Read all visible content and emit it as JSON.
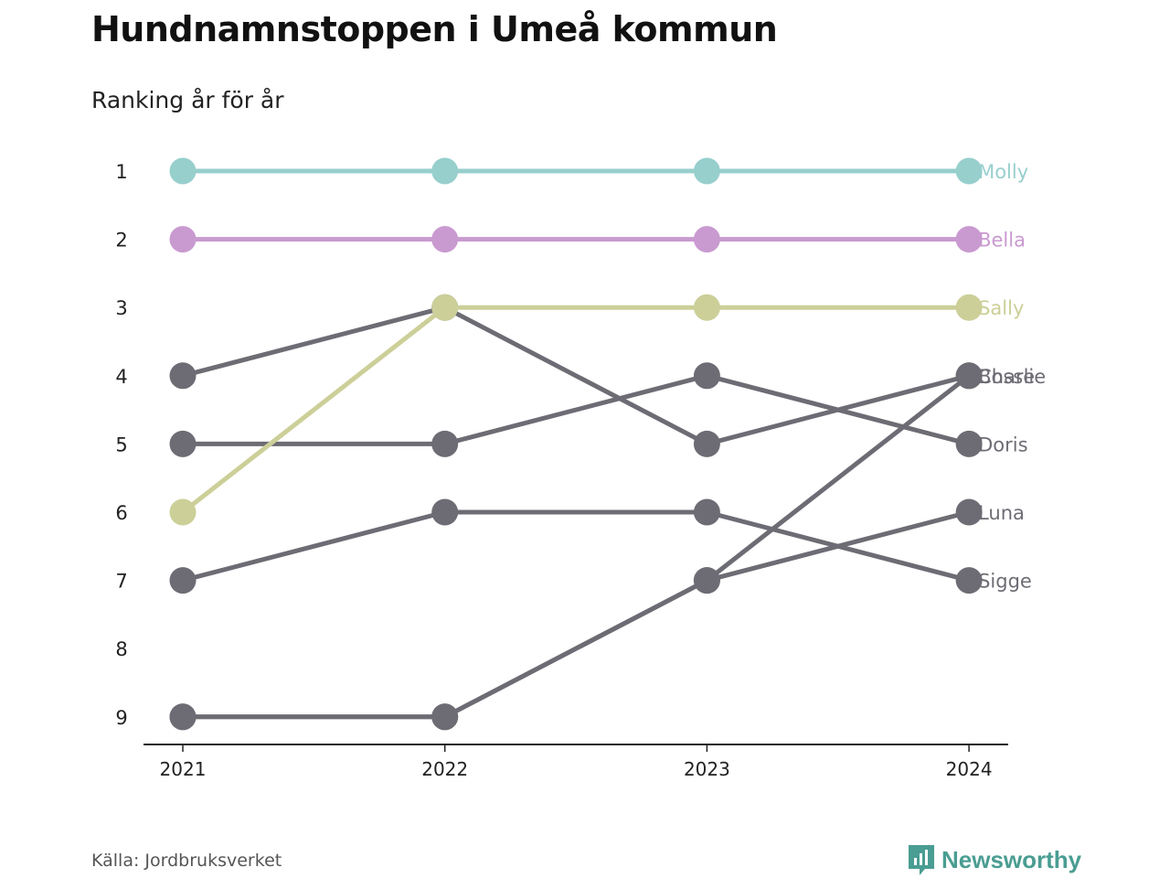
{
  "title": "Hundnamnstoppen i Umeå kommun",
  "subtitle": "Ranking år för år",
  "source": "Källa: Jordbruksverket",
  "brand": "Newsworthy",
  "colors": {
    "Molly": "#97cfcd",
    "Bella": "#c99ad0",
    "Sally": "#cccf98",
    "default": "#6d6c74",
    "axis": "#222222",
    "brand": "#4a9d92"
  },
  "chart_data": {
    "type": "line",
    "x": [
      "2021",
      "2022",
      "2023",
      "2024"
    ],
    "y_ticks": [
      1,
      2,
      3,
      4,
      5,
      6,
      7,
      8,
      9
    ],
    "y_reversed": true,
    "ylim": [
      1,
      9
    ],
    "series": [
      {
        "name": "Molly",
        "values": [
          1,
          1,
          1,
          1
        ]
      },
      {
        "name": "Bella",
        "values": [
          2,
          2,
          2,
          2
        ]
      },
      {
        "name": "Sally",
        "values": [
          6,
          3,
          3,
          3
        ]
      },
      {
        "name": "Bosse",
        "values": [
          9,
          9,
          7,
          4
        ]
      },
      {
        "name": "Doris",
        "values": [
          5,
          5,
          4,
          5
        ]
      },
      {
        "name": "Luna",
        "values": [
          9,
          9,
          7,
          6
        ]
      },
      {
        "name": "Sigge",
        "values": [
          7,
          6,
          6,
          7
        ]
      },
      {
        "name": "Charlie",
        "values": [
          4,
          3,
          5,
          4
        ]
      }
    ]
  }
}
